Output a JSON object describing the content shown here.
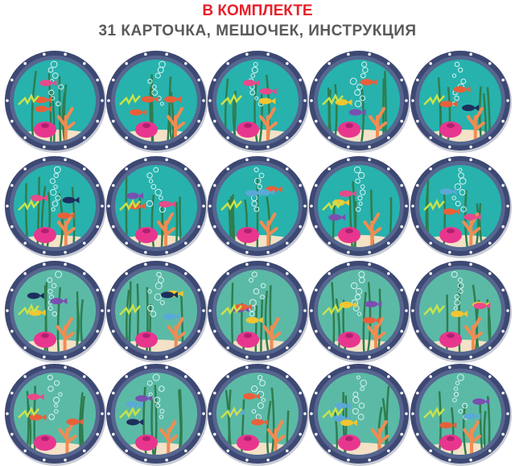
{
  "header": {
    "title": "В КОМПЛЕКТЕ",
    "subtitle": "31 КАРТОЧКА, МЕШОЧЕК, ИНСТРУКЦИЯ"
  }
}
